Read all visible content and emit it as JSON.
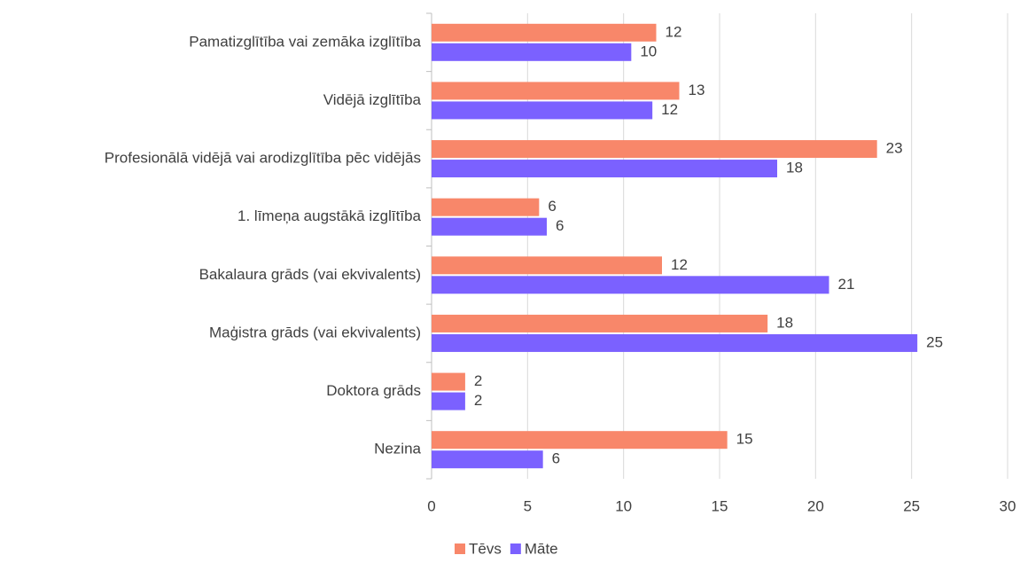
{
  "chart_data": {
    "type": "hbar",
    "categories": [
      "Pamatizglītība vai zemāka izglītība",
      "Vidējā izglītība",
      "Profesionālā vidējā vai arodizglītība pēc vidējās",
      "1. līmeņa augstākā izglītība",
      "Bakalaura grāds (vai ekvivalents)",
      "Maģistra grāds (vai ekvivalents)",
      "Doktora grāds",
      "Nezina"
    ],
    "series": [
      {
        "name": "Tēvs",
        "color": "#f8876a",
        "values": [
          11.7,
          12.9,
          23.2,
          5.6,
          12.0,
          17.5,
          1.75,
          15.4
        ],
        "value_labels": [
          "12",
          "13",
          "23",
          "6",
          "12",
          "18",
          "2",
          "15"
        ]
      },
      {
        "name": "Māte",
        "color": "#7b61ff",
        "values": [
          10.4,
          11.5,
          18.0,
          6.0,
          20.7,
          25.3,
          1.75,
          5.8
        ],
        "value_labels": [
          "10",
          "12",
          "18",
          "6",
          "21",
          "25",
          "2",
          "6"
        ]
      }
    ],
    "xlim": [
      0,
      30
    ],
    "xticks": [
      0,
      5,
      10,
      15,
      20,
      25,
      30
    ],
    "grid": true,
    "legend": "bottom"
  }
}
